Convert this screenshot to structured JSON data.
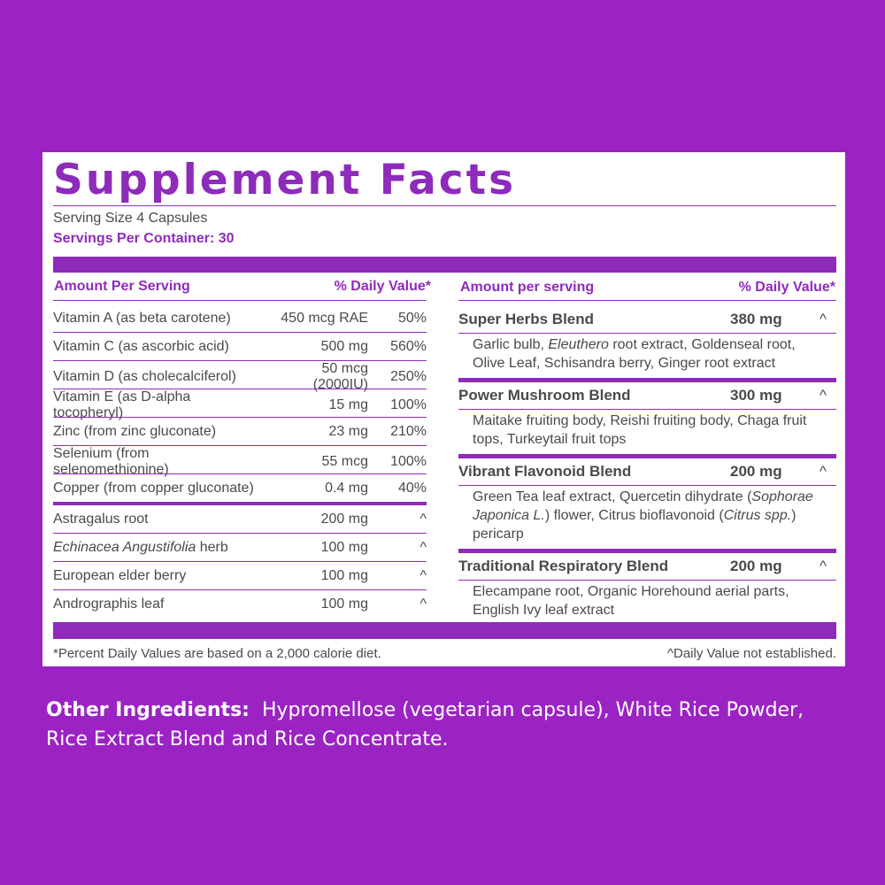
{
  "title": "Supplement Facts",
  "serving_size": "Serving Size 4 Capsules",
  "servings_per_container": "Servings Per Container: 30",
  "left_table": {
    "header": [
      "Amount Per Serving",
      "% Daily Value*"
    ],
    "vitamins": [
      [
        "Vitamin A (as beta carotene)",
        "450 mcg RAE",
        "50%"
      ],
      [
        "Vitamin C (as ascorbic acid)",
        "500 mg",
        "560%"
      ],
      [
        "Vitamin D (as cholecalciferol)",
        "50 mcg (2000IU)",
        "250%"
      ],
      [
        "Vitamin E (as D-alpha tocopheryl)",
        "15 mg",
        "100%"
      ],
      [
        "Zinc (from zinc gluconate)",
        "23 mg",
        "210%"
      ],
      [
        "Selenium (from selenomethionine)",
        "55 mcg",
        "100%"
      ],
      [
        "Copper (from copper gluconate)",
        "0.4 mg",
        "40%"
      ]
    ],
    "herbs": [
      [
        "Astragalus root",
        "200 mg",
        "^"
      ],
      [
        [
          {
            "text": "Echinacea Angustifolia",
            "italic": true
          },
          {
            "text": " herb"
          }
        ],
        "100 mg",
        "^"
      ],
      [
        "European elder berry",
        "100 mg",
        "^"
      ],
      [
        "Andrographis leaf",
        "100 mg",
        "^"
      ]
    ]
  },
  "right_table": {
    "header": [
      "Amount per serving",
      "% Daily Value*"
    ],
    "blends": [
      {
        "name": "Super Herbs Blend",
        "amount": "380 mg",
        "dv": "^",
        "description": [
          {
            "text": "Garlic bulb, "
          },
          {
            "text": "Eleuthero",
            "italic": true
          },
          {
            "text": " root extract, Goldenseal root, Olive Leaf, Schisandra berry, Ginger root extract"
          }
        ]
      },
      {
        "name": "Power Mushroom Blend",
        "amount": "300 mg",
        "dv": "^",
        "description": [
          {
            "text": "Maitake fruiting body, Reishi fruiting body, Chaga fruit tops, Turkeytail fruit tops"
          }
        ]
      },
      {
        "name": "Vibrant Flavonoid Blend",
        "amount": "200 mg",
        "dv": "^",
        "description": [
          {
            "text": "Green Tea leaf extract, Quercetin dihydrate ("
          },
          {
            "text": "Sophorae Japonica L.",
            "italic": true
          },
          {
            "text": ") flower, Citrus bioflavonoid ("
          },
          {
            "text": "Citrus spp.",
            "italic": true
          },
          {
            "text": ") pericarp"
          }
        ]
      },
      {
        "name": "Traditional Respiratory Blend",
        "amount": "200 mg",
        "dv": "^",
        "description": [
          {
            "text": "Elecampane root, Organic Horehound aerial parts, English Ivy leaf extract"
          }
        ]
      }
    ]
  },
  "footer": {
    "note": "*Percent Daily Values are based on a 2,000 calorie diet.",
    "dv_note": "^Daily Value not established."
  },
  "other_ingredients": {
    "label": "Other Ingredients:",
    "text": "Hypromellose (vegetarian capsule), White Rice Powder, Rice Extract Blend and Rice Concentrate."
  }
}
